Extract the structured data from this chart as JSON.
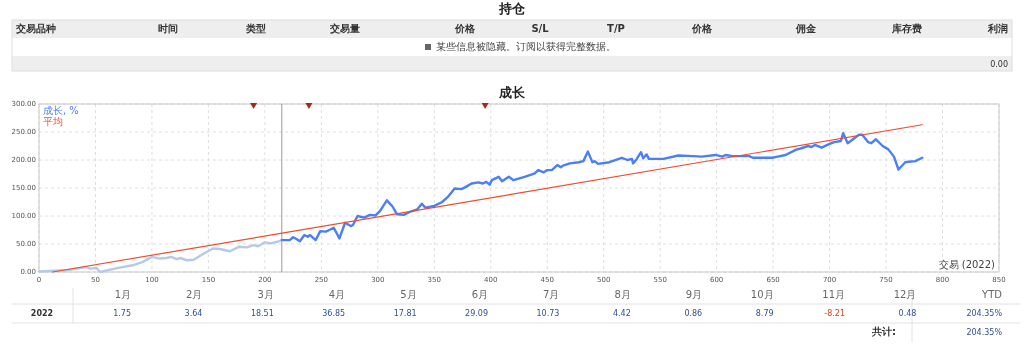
{
  "chart_data": [
    {
      "type": "other",
      "title": "持仓",
      "categories": [
        "交易品种",
        "时间",
        "类型",
        "交易量",
        "价格",
        "S/L",
        "T/P",
        "价格",
        "佣金",
        "库存费",
        "利润"
      ],
      "annotations": [
        "某些信息被隐藏。订阅以获得完整数据。",
        "0.00"
      ]
    },
    {
      "type": "line",
      "title": "成长",
      "xlim": [
        0,
        850
      ],
      "xticks": [
        0,
        50,
        100,
        150,
        200,
        250,
        300,
        350,
        400,
        450,
        500,
        550,
        600,
        650,
        700,
        750,
        800,
        850
      ],
      "ylim": [
        0,
        300
      ],
      "yticks": [
        {
          "value": 0,
          "label": "0.00"
        },
        {
          "value": 50,
          "label": "50.00"
        },
        {
          "value": 100,
          "label": "100.00"
        },
        {
          "value": 150,
          "label": "150.00"
        },
        {
          "value": 200,
          "label": "200.00"
        },
        {
          "value": 250,
          "label": "250.00"
        },
        {
          "value": 300,
          "label": "300.00"
        }
      ],
      "grid": true,
      "legend": "top left",
      "line_style": "solid",
      "series": [
        {
          "name": "成长, %",
          "color": "#4a7ff7",
          "x": [
            215,
            222,
            225,
            228,
            231,
            235,
            238,
            240,
            245,
            249,
            254,
            257,
            261,
            266,
            271,
            276,
            278,
            282,
            288,
            293,
            298,
            302,
            308,
            313,
            317,
            323,
            329,
            335,
            339,
            342,
            350,
            357,
            362,
            368,
            374,
            378,
            383,
            389,
            393,
            396,
            399,
            401,
            407,
            410,
            416,
            420,
            430,
            439,
            442,
            447,
            450,
            454,
            459,
            462,
            464,
            470,
            478,
            482,
            486,
            490,
            492,
            495,
            505,
            516,
            521,
            525,
            526,
            529,
            533,
            535,
            538,
            540,
            547,
            553,
            566,
            579,
            587,
            599,
            605,
            608,
            614,
            629,
            632,
            644,
            649,
            654,
            661,
            670,
            675,
            681,
            684,
            687,
            693,
            698,
            704,
            710,
            712,
            716,
            726,
            729,
            734,
            737,
            741,
            747,
            752,
            757,
            761,
            767,
            770,
            776,
            782
          ],
          "values": [
            57,
            57,
            62,
            59,
            55,
            66,
            63,
            66,
            57,
            73,
            72,
            75,
            79,
            60,
            88,
            82,
            84,
            100,
            97,
            102,
            101,
            109,
            128,
            117,
            103,
            102,
            108,
            112,
            122,
            115,
            118,
            125,
            134,
            149,
            148,
            152,
            158,
            160,
            158,
            161,
            156,
            164,
            170,
            162,
            170,
            164,
            170,
            176,
            182,
            178,
            182,
            182,
            191,
            187,
            190,
            194,
            196,
            198,
            215,
            196,
            198,
            193,
            196,
            204,
            200,
            202,
            194,
            201,
            214,
            203,
            210,
            202,
            202,
            202,
            208,
            207,
            206,
            209,
            206,
            209,
            207,
            207,
            204,
            204,
            204,
            206,
            209,
            218,
            221,
            225,
            223,
            227,
            222,
            227,
            232,
            234,
            248,
            230,
            245,
            245,
            232,
            230,
            237,
            225,
            219,
            206,
            183,
            196,
            197,
            198,
            204
          ]
        },
        {
          "color": "#b7c9ea",
          "x": [
            0,
            24,
            42,
            45,
            51,
            54,
            69,
            83,
            92,
            100,
            107,
            113,
            117,
            122,
            125,
            131,
            137,
            146,
            154,
            160,
            169,
            177,
            184,
            190,
            194,
            200,
            205,
            211,
            215
          ],
          "values": [
            1,
            3,
            9,
            6,
            7,
            0,
            7,
            12,
            18,
            27,
            24,
            25,
            27,
            23,
            25,
            21,
            22,
            33,
            42,
            41,
            37,
            45,
            44,
            48,
            46,
            53,
            51,
            54,
            57
          ]
        },
        {
          "name": "平均",
          "color": "#ee4d2d",
          "x": [
            12,
            782
          ],
          "values": [
            0,
            263
          ]
        },
        {
          "type": "scatter",
          "marker": "triangle",
          "color": "#a5281b",
          "x": [
            190,
            239,
            395
          ],
          "values": [
            300,
            300,
            300
          ]
        }
      ],
      "ref_lines": [
        {
          "axis": "x",
          "value": 215,
          "color": "#9a9a9a"
        }
      ],
      "annotations": [
        "交易 (2022)"
      ]
    },
    {
      "type": "heatmap",
      "y_categories": [
        "2022"
      ],
      "categories": [
        "1月",
        "2月",
        "3月",
        "4月",
        "5月",
        "6月",
        "7月",
        "8月",
        "9月",
        "10月",
        "11月",
        "12月",
        "YTD"
      ],
      "cells": [
        [
          1.75,
          3.64,
          18.51,
          36.85,
          17.81,
          29.09,
          10.73,
          4.42,
          0.86,
          8.79,
          -8.21,
          0.48,
          204.35
        ]
      ],
      "cell_labels": [
        [
          "1.75",
          "3.64",
          "18.51",
          "36.85",
          "17.81",
          "29.09",
          "10.73",
          "4.42",
          "0.86",
          "8.79",
          "-8.21",
          "0.48",
          "204.35%"
        ]
      ],
      "annotations": [
        "共计:",
        "204.35%"
      ]
    }
  ]
}
